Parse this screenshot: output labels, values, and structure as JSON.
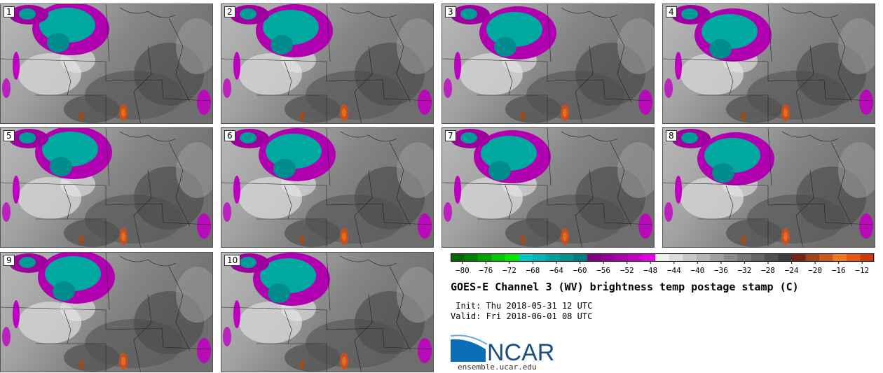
{
  "panels": [
    {
      "label": "1"
    },
    {
      "label": "2"
    },
    {
      "label": "3"
    },
    {
      "label": "4"
    },
    {
      "label": "5"
    },
    {
      "label": "6"
    },
    {
      "label": "7"
    },
    {
      "label": "8"
    },
    {
      "label": "9"
    },
    {
      "label": "10"
    }
  ],
  "colorbar": {
    "colors": [
      "#006400",
      "#008000",
      "#00a000",
      "#00c800",
      "#00e600",
      "#00c8c8",
      "#00b4b4",
      "#00a0a0",
      "#009090",
      "#007c7c",
      "#800080",
      "#960096",
      "#aa00aa",
      "#c000c0",
      "#e000e0",
      "#f0f0f0",
      "#dcdcdc",
      "#c8c8c8",
      "#b4b4b4",
      "#a0a0a0",
      "#8c8c8c",
      "#787878",
      "#646464",
      "#505050",
      "#3c3c3c",
      "#6e2a0e",
      "#a0421a",
      "#c85a1e",
      "#f07820",
      "#e85a14",
      "#c83c0a"
    ],
    "tick_labels": [
      "−80",
      "−76",
      "−72",
      "−68",
      "−64",
      "−60",
      "−56",
      "−52",
      "−48",
      "−44",
      "−40",
      "−36",
      "−32",
      "−28",
      "−24",
      "−20",
      "−16",
      "−12"
    ],
    "min": -82,
    "max": -10
  },
  "title": "GOES-E Channel 3 (WV) brightness temp postage stamp (C)",
  "init_line": " Init: Thu 2018-05-31 12 UTC",
  "valid_line": "Valid: Fri 2018-06-01 08 UTC",
  "logo_text": "NCAR",
  "url": "ensemble.ucar.edu"
}
